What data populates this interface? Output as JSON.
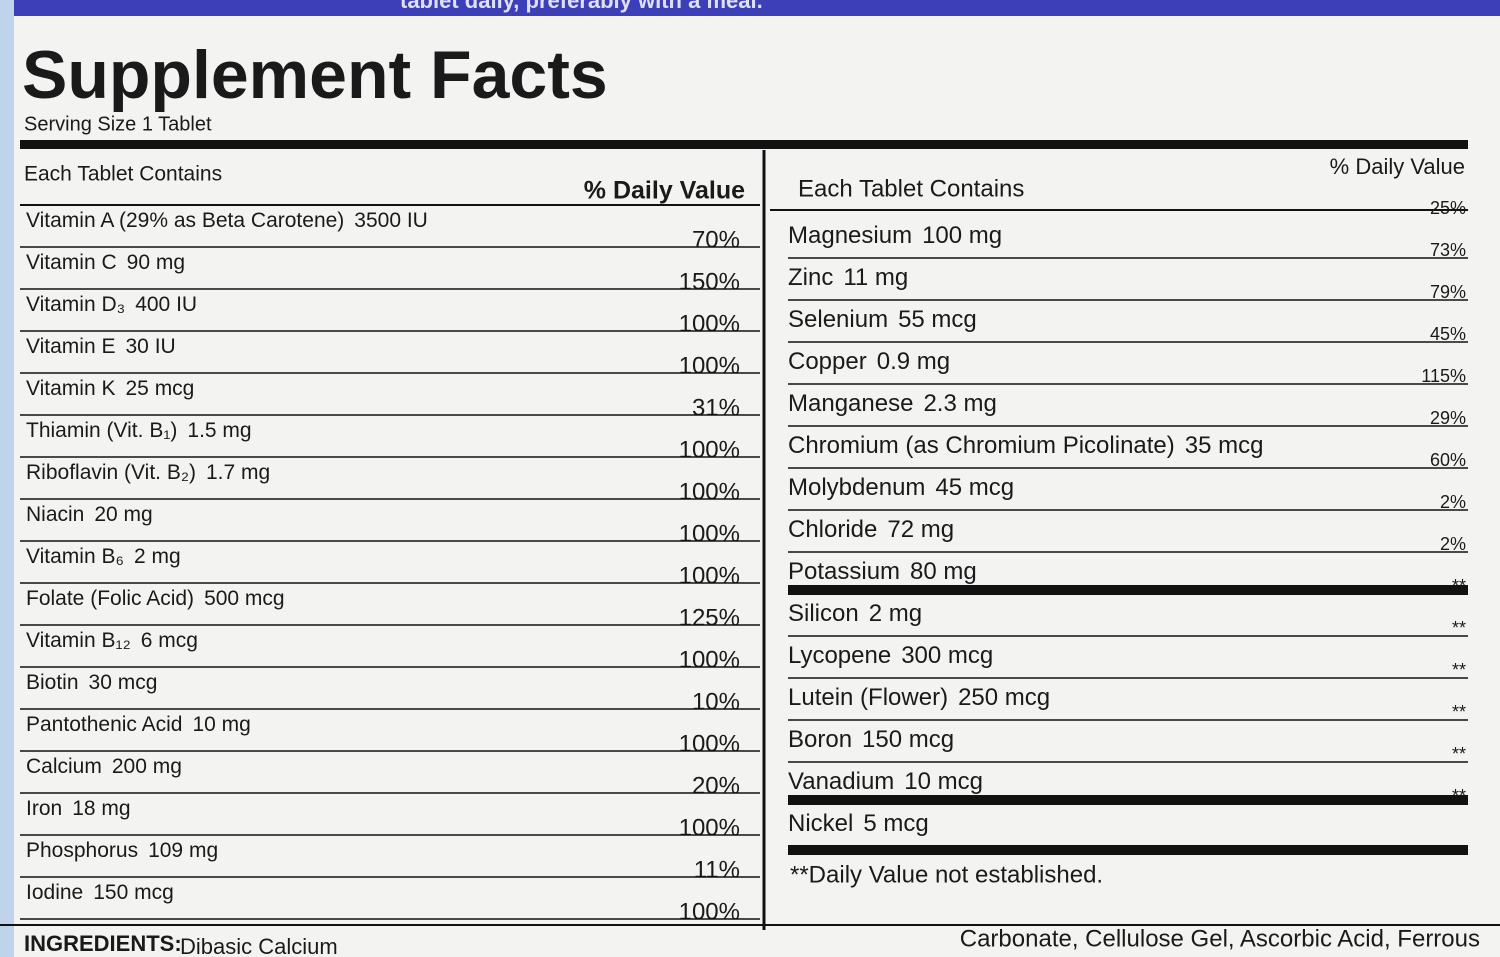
{
  "header": {
    "directions": "tablet daily, preferably with a meal.",
    "title": "Supplement Facts",
    "serving_size": "Serving Size 1 Tablet"
  },
  "left_table": {
    "column_header": "Each Tablet Contains",
    "value_header": "% Daily Value",
    "rows": [
      [
        "Vitamin A (29% as Beta Carotene)",
        "3500 IU",
        "70%"
      ],
      [
        "Vitamin C",
        "90 mg",
        "150%"
      ],
      [
        "Vitamin D₃",
        "400 IU",
        "100%"
      ],
      [
        "Vitamin E",
        "30 IU",
        "100%"
      ],
      [
        "Vitamin K",
        "25 mcg",
        "31%"
      ],
      [
        "Thiamin (Vit. B₁)",
        "1.5 mg",
        "100%"
      ],
      [
        "Riboflavin (Vit. B₂)",
        "1.7 mg",
        "100%"
      ],
      [
        "Niacin",
        "20 mg",
        "100%"
      ],
      [
        "Vitamin B₆",
        "2 mg",
        "100%"
      ],
      [
        "Folate (Folic Acid)",
        "500 mcg",
        "125%"
      ],
      [
        "Vitamin B₁₂",
        "6 mcg",
        "100%"
      ],
      [
        "Biotin",
        "30 mcg",
        "10%"
      ],
      [
        "Pantothenic Acid",
        "10 mg",
        "100%"
      ],
      [
        "Calcium",
        "200 mg",
        "20%"
      ],
      [
        "Iron",
        "18 mg",
        "100%"
      ],
      [
        "Phosphorus",
        "109 mg",
        "11%"
      ],
      [
        "Iodine",
        "150 mcg",
        "100%"
      ]
    ]
  },
  "right_table": {
    "column_header": "Each Tablet Contains",
    "value_header": "% Daily Value",
    "rows": [
      [
        "Magnesium",
        "100 mg",
        "25%"
      ],
      [
        "Zinc",
        "11 mg",
        "73%"
      ],
      [
        "Selenium",
        "55 mcg",
        "79%"
      ],
      [
        "Copper",
        "0.9 mg",
        "45%"
      ],
      [
        "Manganese",
        "2.3 mg",
        "115%"
      ],
      [
        "Chromium (as Chromium Picolinate)",
        "35 mcg",
        "29%"
      ],
      [
        "Molybdenum",
        "45 mcg",
        "60%"
      ],
      [
        "Chloride",
        "72 mg",
        "2%"
      ],
      [
        "Potassium",
        "80 mg",
        "2%"
      ],
      [
        "Silicon",
        "2 mg",
        "**"
      ],
      [
        "Lycopene",
        "300 mcg",
        "**"
      ],
      [
        "Lutein (Flower)",
        "250 mcg",
        "**"
      ],
      [
        "Boron",
        "150 mcg",
        "**"
      ],
      [
        "Vanadium",
        "10 mcg",
        "**"
      ],
      [
        "Nickel",
        "5 mcg",
        "**"
      ]
    ],
    "footnote": "**Daily Value not established."
  },
  "ingredients": {
    "label": "INGREDIENTS:",
    "start": "Dibasic Calcium",
    "fragment": "Carbonate, Cellulose Gel, Ascorbic Acid, Ferrous"
  }
}
